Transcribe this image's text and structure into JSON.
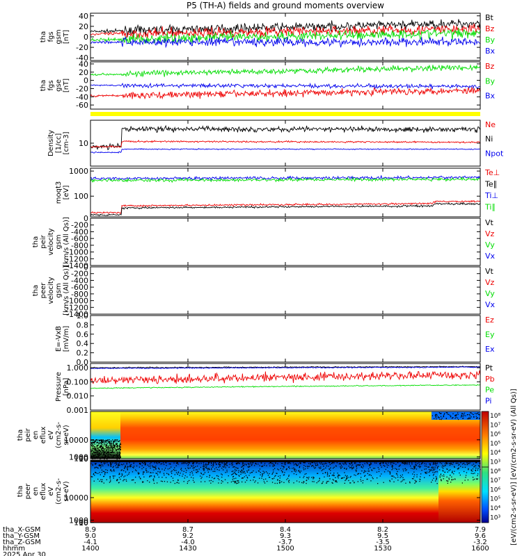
{
  "title": "P5 (TH-A) fields and ground moments overview",
  "colors": {
    "black": "#000000",
    "red": "#ee0000",
    "green": "#00dd00",
    "blue": "#0000ee",
    "yellow": "#ffff00"
  },
  "chart_data": [
    {
      "id": "fgs_gsm",
      "type": "line",
      "ylabel": [
        "tha",
        "fgs",
        "gsm",
        "[nT]"
      ],
      "yticks": [
        "40",
        "20",
        "0",
        "-20",
        "-40"
      ],
      "ylim": [
        -45,
        45
      ],
      "legend": [
        {
          "label": "Bt",
          "color": "black"
        },
        {
          "label": "Bz",
          "color": "red"
        },
        {
          "label": "By",
          "color": "green"
        },
        {
          "label": "Bx",
          "color": "blue"
        }
      ],
      "series": [
        {
          "name": "Bt",
          "color": "black",
          "start": 10,
          "end": 26,
          "noise": 7
        },
        {
          "name": "Bz",
          "color": "red",
          "start": 5,
          "end": 15,
          "noise": 8
        },
        {
          "name": "By",
          "color": "green",
          "start": -6,
          "end": 8,
          "noise": 8
        },
        {
          "name": "Bx",
          "color": "blue",
          "start": -10,
          "end": -10,
          "noise": 7
        }
      ]
    },
    {
      "id": "fgs_gse",
      "type": "line",
      "ylabel": [
        "tha",
        "fgs",
        "gse",
        "[nT]"
      ],
      "yticks": [
        "40",
        "20",
        "0",
        "-20",
        "-40",
        "-60"
      ],
      "ylim": [
        -70,
        45
      ],
      "legend": [
        {
          "label": "Bz",
          "color": "red"
        },
        {
          "label": "By",
          "color": "green"
        },
        {
          "label": "Bx",
          "color": "blue"
        }
      ],
      "series": [
        {
          "name": "Bz",
          "color": "red",
          "start": -38,
          "end": -24,
          "noise": 7
        },
        {
          "name": "By",
          "color": "green",
          "start": 14,
          "end": 32,
          "noise": 6
        },
        {
          "name": "Bx",
          "color": "blue",
          "start": -12,
          "end": -15,
          "noise": 4
        }
      ]
    },
    {
      "id": "density",
      "type": "line",
      "log": true,
      "ylabel": [
        "Density",
        "[1/cc]",
        "[cm-3]"
      ],
      "yticks": [
        "10"
      ],
      "ylim": [
        1,
        100
      ],
      "legend": [
        {
          "label": "Ne",
          "color": "red"
        },
        {
          "label": "Ni",
          "color": "black"
        },
        {
          "label": "Npot",
          "color": "blue"
        }
      ],
      "series": [
        {
          "name": "Ni",
          "color": "black",
          "start": 42,
          "end": 40,
          "noise": 0.1
        },
        {
          "name": "Ne",
          "color": "red",
          "start": 12,
          "end": 11,
          "noise": 0.03
        },
        {
          "name": "Npot",
          "color": "blue",
          "start": 5.5,
          "end": 5.5,
          "noise": 0.02
        }
      ]
    },
    {
      "id": "temperature",
      "type": "line",
      "log": true,
      "ylabel": [
        "moqt3",
        "[eV]"
      ],
      "yticks": [
        "1000",
        "100"
      ],
      "ylim": [
        15,
        1300
      ],
      "legend": [
        {
          "label": "Te⊥",
          "color": "red"
        },
        {
          "label": "Te∥",
          "color": "black"
        },
        {
          "label": "Ti⊥",
          "color": "blue"
        },
        {
          "label": "Ti∥",
          "color": "green"
        }
      ],
      "series": [
        {
          "name": "Ti⊥",
          "color": "blue",
          "start": 500,
          "end": 560,
          "noise": 0.05
        },
        {
          "name": "Ti∥",
          "color": "green",
          "start": 420,
          "end": 480,
          "noise": 0.05
        },
        {
          "name": "Te⊥",
          "color": "red",
          "start": 40,
          "end": 52,
          "noise": 0.03
        },
        {
          "name": "Te∥",
          "color": "black",
          "start": 33,
          "end": 42,
          "noise": 0.03
        }
      ]
    },
    {
      "id": "peir_velocity",
      "type": "line",
      "ylabel": [
        "tha",
        "peir",
        "velocity",
        "gsm",
        "[km/s (All Qs)]"
      ],
      "yticks": [
        "0",
        "-200",
        "-400",
        "-600",
        "-800",
        "-1000",
        "-1200",
        "-1400"
      ],
      "ylim": [
        -1400,
        0
      ],
      "legend": [
        {
          "label": "Vt",
          "color": "black"
        },
        {
          "label": "Vz",
          "color": "red"
        },
        {
          "label": "Vy",
          "color": "green"
        },
        {
          "label": "Vx",
          "color": "blue"
        }
      ],
      "series": []
    },
    {
      "id": "peer_velocity",
      "type": "line",
      "ylabel": [
        "tha",
        "peer",
        "velocity",
        "gsm",
        "[km/s (All Qs)]"
      ],
      "yticks": [
        "0",
        "-200",
        "-400",
        "-600",
        "-800",
        "-1000",
        "-1200",
        "-1400"
      ],
      "ylim": [
        -1400,
        0
      ],
      "legend": [
        {
          "label": "Vt",
          "color": "black"
        },
        {
          "label": "Vz",
          "color": "red"
        },
        {
          "label": "Vy",
          "color": "green"
        },
        {
          "label": "Vx",
          "color": "blue"
        }
      ],
      "series": []
    },
    {
      "id": "efield",
      "type": "line",
      "ylabel": [
        "E=-VxB",
        "[mV/m]"
      ],
      "yticks": [
        "1.0",
        "0.8",
        "0.6",
        "0.4",
        "0.2",
        "0.0"
      ],
      "ylim": [
        0,
        1
      ],
      "legend": [
        {
          "label": "Ez",
          "color": "red"
        },
        {
          "label": "Ey",
          "color": "green"
        },
        {
          "label": "Ex",
          "color": "blue"
        }
      ],
      "series": []
    },
    {
      "id": "pressure",
      "type": "line",
      "log": true,
      "ylabel": [
        "Pressure",
        "[nPa]"
      ],
      "yticks": [
        "1.000",
        "0.100",
        "0.010",
        "0.001"
      ],
      "ylim": [
        0.001,
        2
      ],
      "legend": [
        {
          "label": "Pt",
          "color": "black"
        },
        {
          "label": "Pb",
          "color": "red"
        },
        {
          "label": "Pe",
          "color": "green"
        },
        {
          "label": "Pi",
          "color": "blue"
        }
      ],
      "series": [
        {
          "name": "Pt",
          "color": "black",
          "start": 1.0,
          "end": 1.2,
          "noise": 0.03
        },
        {
          "name": "Pi",
          "color": "blue",
          "start": 0.9,
          "end": 1.1,
          "noise": 0.03
        },
        {
          "name": "Pb",
          "color": "red",
          "start": 0.12,
          "end": 0.3,
          "noise": 0.25
        },
        {
          "name": "Pe",
          "color": "green",
          "start": 0.035,
          "end": 0.06,
          "noise": 0.03
        }
      ]
    },
    {
      "id": "peir_spectrogram",
      "type": "heatmap",
      "ylabel": [
        "tha",
        "peir",
        "en",
        "eflux",
        "eV",
        "(cm2-s-",
        "sr-eV)"
      ],
      "yticks": [
        "10000",
        "1000",
        "100",
        "10"
      ],
      "ylim": [
        5,
        25000
      ]
    },
    {
      "id": "peer_spectrogram",
      "type": "heatmap",
      "ylabel": [
        "tha",
        "peer",
        "en",
        "eflux",
        "eV",
        "(cm2-s-",
        "sr-eV)"
      ],
      "yticks": [
        "10000",
        "1000",
        "100",
        "10"
      ],
      "ylim": [
        5,
        25000
      ]
    }
  ],
  "colorbar": {
    "ticks": [
      "10⁸",
      "10⁷",
      "10⁶",
      "10⁵",
      "10⁴",
      "10³",
      "10⁸",
      "10⁷",
      "10⁶",
      "10⁵",
      "10⁴",
      "10³"
    ],
    "label": "[eV/(cm2-s-sr-eV)] [eV/(cm2-s-sr-eV) (All Qs)]"
  },
  "x_axis": {
    "labels": [
      "tha_X-GSM",
      "tha_Y-GSM",
      "tha_Z-GSM",
      "hhmm",
      "2025 Apr 30"
    ],
    "columns": [
      {
        "x": "8.9",
        "y": "9.0",
        "z": "-4.1",
        "t": "1400"
      },
      {
        "x": "8.7",
        "y": "9.2",
        "z": "-4.0",
        "t": "1430"
      },
      {
        "x": "8.4",
        "y": "9.3",
        "z": "-3.7",
        "t": "1500"
      },
      {
        "x": "8.2",
        "y": "9.5",
        "z": "-3.5",
        "t": "1530"
      },
      {
        "x": "7.9",
        "y": "9.6",
        "z": "-3.2",
        "t": "1600"
      }
    ]
  }
}
